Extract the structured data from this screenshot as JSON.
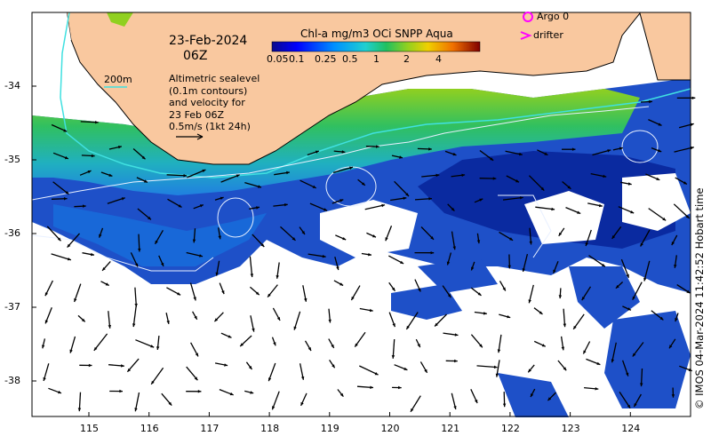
{
  "title": {
    "date": "23-Feb-2024",
    "time": "06Z"
  },
  "colorbar": {
    "title": "Chl-a mg/m3 OCi SNPP Aqua",
    "ticks": [
      "0.05",
      "0.1",
      "0.25",
      "0.5",
      "1",
      "2",
      "4"
    ],
    "colors": [
      "#0a0a8c",
      "#0000ff",
      "#0090ff",
      "#20d0d0",
      "#20c060",
      "#90d020",
      "#f0d000",
      "#f07000",
      "#c01010",
      "#800000"
    ]
  },
  "legend": {
    "argo_label": "Argo 0",
    "drifter_label": "drifter",
    "argo_color": "#ff00ff",
    "drifter_color": "#ff00ff"
  },
  "annotations": {
    "isobath_label": "200m",
    "altimetry_lines": [
      "Altimetric sealevel",
      "(0.1m contours)",
      "and velocity for",
      "23 Feb 06Z",
      "0.5m/s (1kt 24h)"
    ]
  },
  "credit": "© IMOS 04-Mar-2024 11:42:52 Hobart time",
  "axes": {
    "lon_ticks": [
      "115",
      "116",
      "117",
      "118",
      "119",
      "120",
      "121",
      "122",
      "123",
      "124"
    ],
    "lat_ticks": [
      "-34",
      "-35",
      "-36",
      "-37",
      "-38"
    ]
  },
  "colors": {
    "land": "#f9c89f",
    "ocean_blue": "#1e50c8",
    "coastal_green": "#40c040",
    "contour": "#e8f0ff",
    "isobath": "#40e0e0"
  }
}
